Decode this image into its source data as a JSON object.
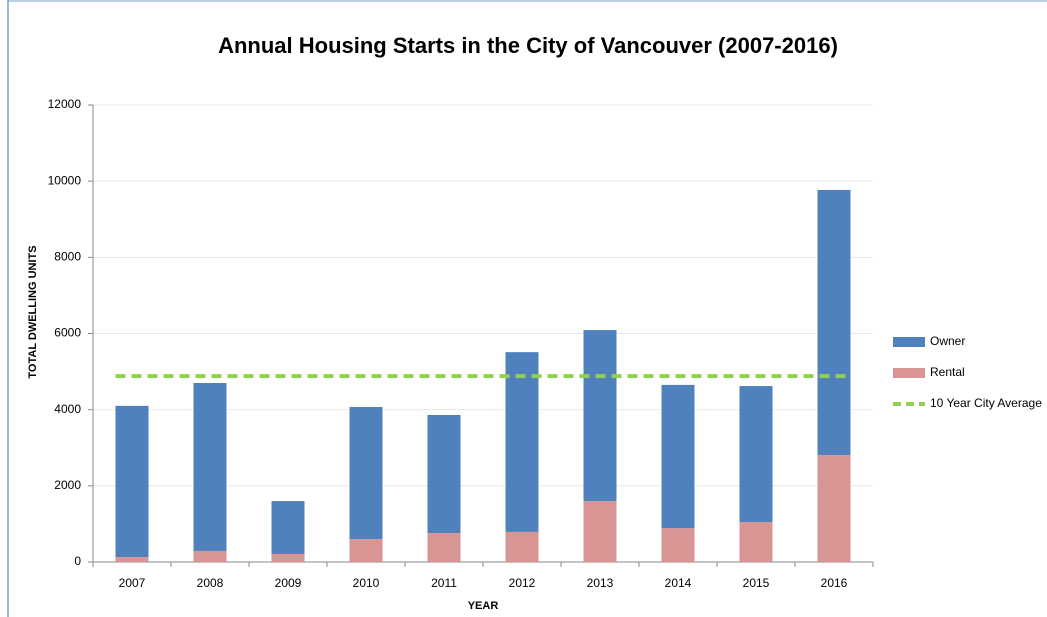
{
  "chart_data": {
    "type": "stacked-bar",
    "title": "Annual Housing Starts in the City of Vancouver (2007-2016)",
    "x_label": "YEAR",
    "y_label": "TOTAL DWELLING UNITS",
    "categories": [
      "2007",
      "2008",
      "2009",
      "2010",
      "2011",
      "2012",
      "2013",
      "2014",
      "2015",
      "2016"
    ],
    "series": [
      {
        "name": "Owner",
        "color": "#4f81bd",
        "values": [
          3970,
          4410,
          1390,
          3470,
          3100,
          4720,
          4490,
          3760,
          3570,
          6960
        ]
      },
      {
        "name": "Rental",
        "color": "#d99594",
        "values": [
          130,
          290,
          210,
          600,
          760,
          790,
          1600,
          890,
          1050,
          2810
        ]
      },
      {
        "name": "10 Year City Average",
        "color": "#92d050",
        "type": "line",
        "dashed": true,
        "values": [
          4880,
          4880,
          4880,
          4880,
          4880,
          4880,
          4880,
          4880,
          4880,
          4880
        ]
      }
    ],
    "stack_order": [
      "Rental",
      "Owner"
    ],
    "ylim": [
      0,
      12000
    ],
    "yticks": [
      0,
      2000,
      4000,
      6000,
      8000,
      10000,
      12000
    ],
    "grid": true,
    "legend": "right"
  }
}
